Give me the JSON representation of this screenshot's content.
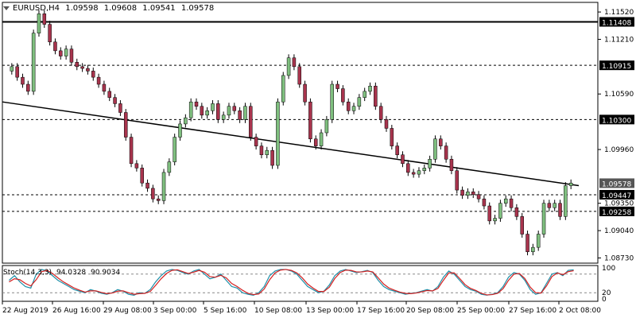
{
  "header": {
    "symbol_timeframe": "EURUSD,H4",
    "open": "1.09598",
    "high": "1.09608",
    "low": "1.09541",
    "close": "1.09578"
  },
  "stochastic": {
    "label": "Stoch(14,3,3)",
    "main_value": "94.0328",
    "signal_value": "90.9034"
  },
  "colors": {
    "bull_candle": "#7fbf7f",
    "bear_candle": "#a8344d",
    "axis_line": "#000000",
    "stoch_main": "#1e8fa8",
    "stoch_signal": "#d42020"
  },
  "chart_data": {
    "type": "candlestick",
    "ylim": [
      1.0868,
      1.1162
    ],
    "y_ticks": [
      "1.11520",
      "1.11210",
      "1.10590",
      "1.09960",
      "1.09350",
      "1.09040",
      "1.08730"
    ],
    "x_ticks": [
      "22 Aug 2019",
      "26 Aug 16:00",
      "29 Aug 08:00",
      "3 Sep 00:00",
      "5 Sep 16:00",
      "10 Sep 08:00",
      "13 Sep 00:00",
      "17 Sep 16:00",
      "20 Sep 08:00",
      "25 Sep 00:00",
      "27 Sep 16:00",
      "2 Oct 08:00"
    ],
    "current_price": "1.09578",
    "horizontal_levels": [
      {
        "value": 1.11408,
        "label": "1.11408",
        "style": "solid"
      },
      {
        "value": 1.10915,
        "label": "1.10915",
        "style": "dashed"
      },
      {
        "value": 1.103,
        "label": "1.10300",
        "style": "dashed"
      },
      {
        "value": 1.09447,
        "label": "1.09447",
        "style": "dashed"
      },
      {
        "value": 1.09258,
        "label": "1.09258",
        "style": "dashed"
      }
    ],
    "trendline": {
      "start": 1.105,
      "end": 1.0955
    },
    "price_path": [
      1.1085,
      1.109,
      1.1078,
      1.107,
      1.1062,
      1.1128,
      1.115,
      1.1138,
      1.1118,
      1.1108,
      1.1102,
      1.111,
      1.1095,
      1.109,
      1.1088,
      1.1085,
      1.1078,
      1.107,
      1.1062,
      1.1055,
      1.1048,
      1.1038,
      1.101,
      1.098,
      1.0975,
      1.0958,
      1.0952,
      1.094,
      1.0938,
      1.097,
      1.0982,
      1.101,
      1.1025,
      1.1032,
      1.105,
      1.1045,
      1.1035,
      1.104,
      1.1048,
      1.103,
      1.1035,
      1.1045,
      1.104,
      1.103,
      1.1045,
      1.101,
      1.1,
      1.099,
      1.0995,
      1.0978,
      1.105,
      1.108,
      1.11,
      1.109,
      1.107,
      1.105,
      1.1008,
      1.1,
      1.1015,
      1.103,
      1.107,
      1.1065,
      1.105,
      1.104,
      1.1045,
      1.1055,
      1.1062,
      1.1068,
      1.1045,
      1.103,
      1.102,
      1.1,
      1.099,
      1.098,
      1.097,
      1.0968,
      1.0972,
      1.0975,
      1.0985,
      1.1008,
      1.1,
      1.0985,
      1.0972,
      1.095,
      1.0944,
      1.0948,
      1.0945,
      1.094,
      1.0932,
      1.0915,
      1.0918,
      1.0935,
      1.094,
      1.093,
      1.092,
      1.09,
      1.088,
      1.0885,
      1.09,
      1.0935,
      1.093,
      1.0935,
      1.092,
      1.0955,
      1.0958
    ],
    "stoch_main": [
      60,
      75,
      55,
      40,
      35,
      80,
      95,
      90,
      75,
      60,
      50,
      40,
      30,
      25,
      20,
      30,
      25,
      18,
      15,
      20,
      30,
      25,
      15,
      12,
      20,
      18,
      30,
      55,
      75,
      90,
      95,
      92,
      85,
      80,
      90,
      95,
      80,
      65,
      70,
      80,
      60,
      40,
      35,
      20,
      15,
      12,
      20,
      40,
      75,
      90,
      95,
      95,
      90,
      80,
      60,
      40,
      30,
      20,
      25,
      45,
      75,
      90,
      95,
      90,
      85,
      88,
      92,
      85,
      60,
      40,
      30,
      25,
      20,
      15,
      18,
      20,
      25,
      30,
      25,
      40,
      70,
      90,
      80,
      60,
      40,
      30,
      25,
      15,
      12,
      15,
      20,
      40,
      70,
      85,
      80,
      60,
      30,
      15,
      20,
      50,
      80,
      85,
      75,
      92,
      94
    ],
    "stoch_signal": [
      55,
      65,
      62,
      50,
      42,
      62,
      88,
      92,
      82,
      68,
      55,
      45,
      35,
      28,
      22,
      26,
      26,
      21,
      17,
      19,
      25,
      26,
      20,
      15,
      17,
      18,
      24,
      44,
      65,
      82,
      92,
      94,
      88,
      82,
      86,
      92,
      86,
      72,
      70,
      76,
      68,
      50,
      40,
      28,
      18,
      14,
      16,
      32,
      62,
      84,
      93,
      95,
      92,
      84,
      68,
      48,
      35,
      24,
      24,
      38,
      66,
      85,
      93,
      92,
      87,
      87,
      90,
      87,
      68,
      48,
      35,
      28,
      22,
      18,
      17,
      19,
      23,
      27,
      26,
      34,
      60,
      84,
      84,
      66,
      46,
      34,
      27,
      18,
      13,
      14,
      18,
      33,
      60,
      80,
      82,
      66,
      38,
      20,
      19,
      42,
      72,
      84,
      78,
      88,
      91
    ],
    "stoch_levels": [
      80,
      20
    ],
    "stoch_ticks": [
      "100",
      "20",
      "0"
    ]
  }
}
